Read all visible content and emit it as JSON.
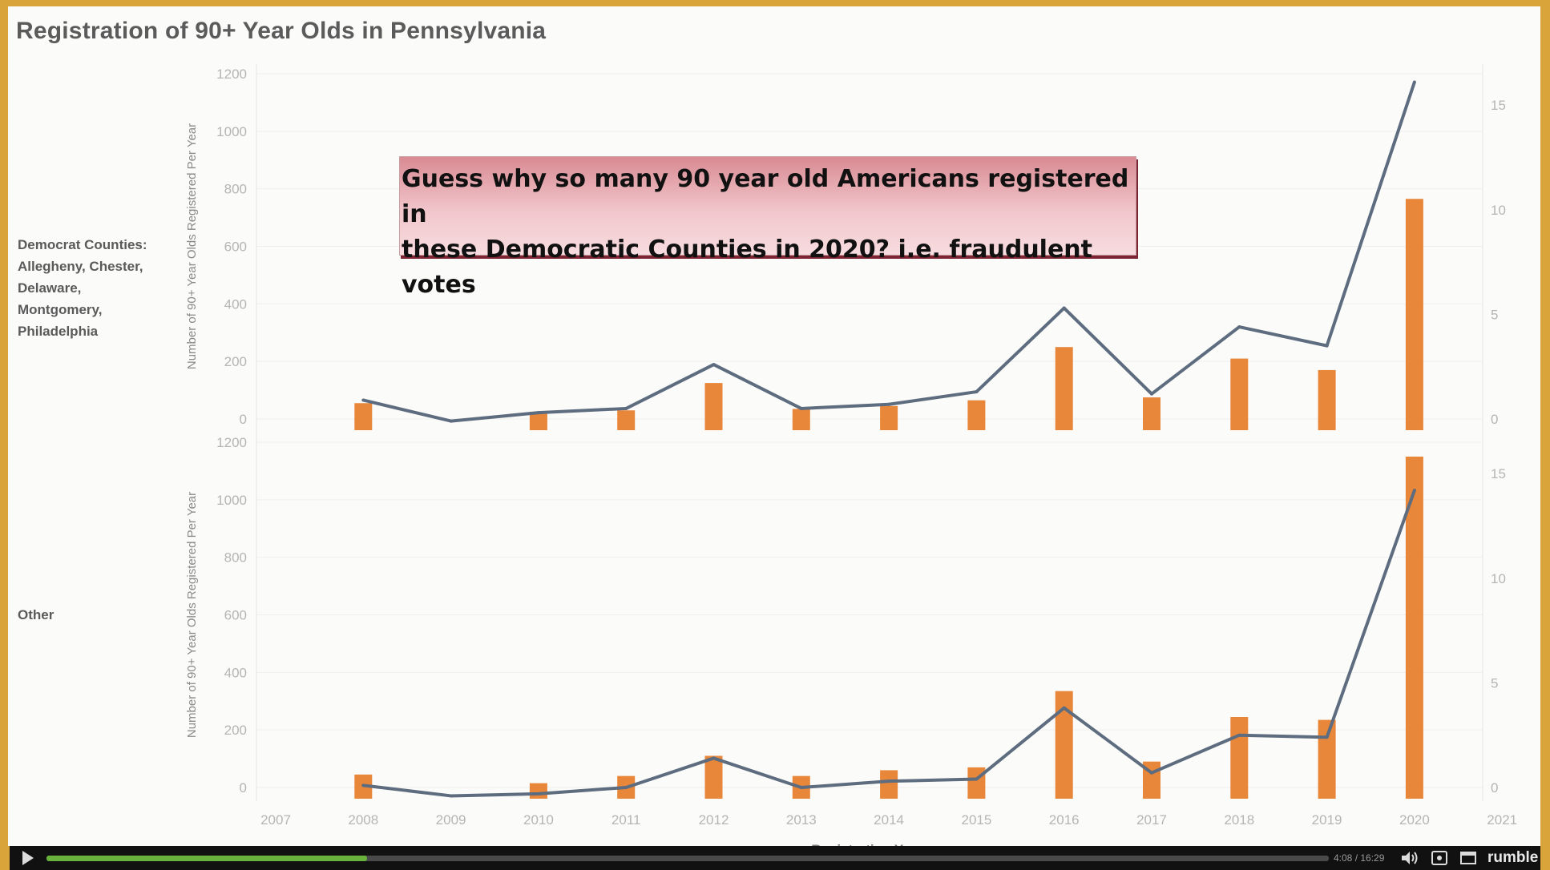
{
  "chart_data": {
    "type": "bar",
    "title": "Registration of 90+ Year Olds in Pennsylvania",
    "xlabel": "Registration Year",
    "x_ticks": [
      "2007",
      "2008",
      "2009",
      "2010",
      "2011",
      "2012",
      "2013",
      "2014",
      "2015",
      "2016",
      "2017",
      "2018",
      "2019",
      "2020",
      "2021"
    ],
    "categories": [
      "2008",
      "2009",
      "2010",
      "2011",
      "2012",
      "2013",
      "2014",
      "2015",
      "2016",
      "2017",
      "2018",
      "2019",
      "2020"
    ],
    "panels": [
      {
        "row_label": [
          "Democrat Counties:",
          "Allegheny, Chester,",
          "Delaware,",
          "Montgomery,",
          "Philadelphia"
        ],
        "ylabel": "Number of 90+ Year Olds Registered Per Year",
        "ylim": [
          0,
          1200
        ],
        "yticks": [
          0,
          200,
          400,
          600,
          800,
          1000,
          1200
        ],
        "y2lim": [
          0,
          16.5
        ],
        "y2ticks": [
          0,
          5,
          10,
          15
        ],
        "bar_values": [
          55,
          0,
          25,
          30,
          125,
          35,
          45,
          65,
          250,
          75,
          210,
          170,
          765
        ],
        "line_values": [
          0.9,
          -0.1,
          0.3,
          0.5,
          2.6,
          0.5,
          0.7,
          1.3,
          5.3,
          1.2,
          4.4,
          3.5,
          16.1
        ]
      },
      {
        "row_label": [
          "Other"
        ],
        "ylabel": "Number of 90+ Year Olds Registered Per Year",
        "ylim": [
          0,
          1200
        ],
        "yticks": [
          0,
          200,
          400,
          600,
          800,
          1000,
          1200
        ],
        "y2lim": [
          0,
          16.5
        ],
        "y2ticks": [
          0,
          5,
          10,
          15
        ],
        "bar_values": [
          45,
          0,
          15,
          40,
          110,
          40,
          60,
          70,
          335,
          90,
          245,
          235,
          1150
        ],
        "line_values": [
          0.1,
          -0.4,
          -0.3,
          0,
          1.4,
          0,
          0.3,
          0.4,
          3.8,
          0.7,
          2.5,
          2.4,
          14.2
        ]
      }
    ],
    "colors": {
      "bar": "#e8863a",
      "line": "#5d6c7e",
      "grid": "#efefef",
      "axis_text": "#b5b5b5"
    }
  },
  "annotation": {
    "lines": [
      "Guess why so many 90 year old Americans registered in",
      "these Democratic Counties in 2020?  i.e. fraudulent votes"
    ]
  },
  "player": {
    "time": "4:08 / 16:29",
    "brand": "rumble",
    "progress_percent": 25,
    "icons": [
      "play-icon",
      "volume-icon",
      "settings-icon",
      "fullscreen-icon"
    ]
  }
}
